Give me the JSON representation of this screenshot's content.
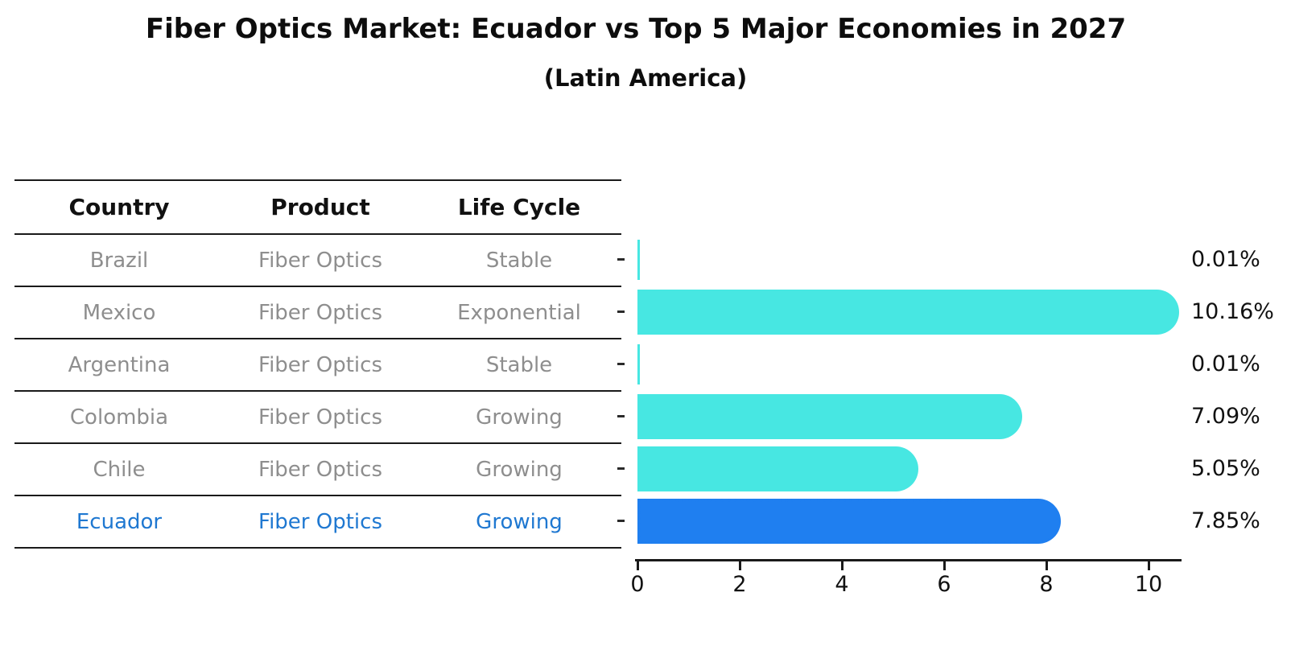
{
  "title": "Fiber Optics Market: Ecuador vs Top 5 Major Economies in 2027",
  "subtitle": "(Latin America)",
  "table": {
    "headers": [
      "Country",
      "Product",
      "Life Cycle"
    ],
    "rows": [
      {
        "country": "Brazil",
        "product": "Fiber Optics",
        "life_cycle": "Stable",
        "highlight": false
      },
      {
        "country": "Mexico",
        "product": "Fiber Optics",
        "life_cycle": "Exponential",
        "highlight": false
      },
      {
        "country": "Argentina",
        "product": "Fiber Optics",
        "life_cycle": "Stable",
        "highlight": false
      },
      {
        "country": "Colombia",
        "product": "Fiber Optics",
        "life_cycle": "Growing",
        "highlight": false
      },
      {
        "country": "Chile",
        "product": "Fiber Optics",
        "life_cycle": "Growing",
        "highlight": true
      }
    ],
    "highlight_row": {
      "country": "Ecuador",
      "product": "Fiber Optics",
      "life_cycle": "Growing"
    }
  },
  "chart_data": {
    "type": "bar",
    "orientation": "horizontal",
    "title": "Fiber Optics Market: Ecuador vs Top 5 Major Economies in 2027",
    "subtitle": "(Latin America)",
    "categories": [
      "Brazil",
      "Mexico",
      "Argentina",
      "Colombia",
      "Chile",
      "Ecuador"
    ],
    "values": [
      0.01,
      10.16,
      0.01,
      7.09,
      5.05,
      7.85
    ],
    "value_labels": [
      "0.01%",
      "10.16%",
      "0.01%",
      "7.09%",
      "5.05%",
      "7.85%"
    ],
    "highlight_index": 5,
    "x_ticks": [
      0,
      2,
      4,
      6,
      8,
      10
    ],
    "xlim": [
      0,
      10.7
    ],
    "grid": "off",
    "legend": "none",
    "colors": {
      "bar_default": "#47E7E2",
      "bar_highlight": "#1F7FF0",
      "highlight_text": "#1f78d1",
      "axis": "#1a1a1a",
      "table_text": "#8e8e8e",
      "label_text": "#111111"
    }
  }
}
